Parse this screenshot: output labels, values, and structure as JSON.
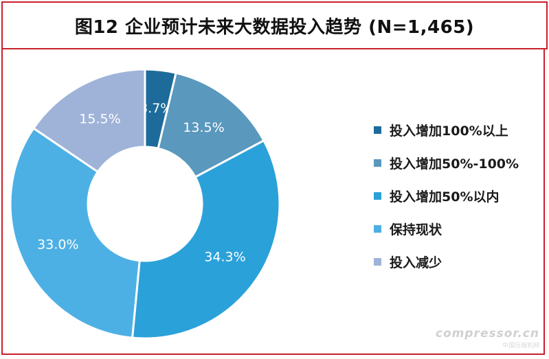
{
  "title": "图12 企业预计未来大数据投入趋势 (N=1,465)",
  "chart_data": {
    "type": "pie",
    "donut": true,
    "categories": [
      "投入增加100%以上",
      "投入增加50%-100%",
      "投入增加50%以内",
      "保持现状",
      "投入减少"
    ],
    "values": [
      3.7,
      13.5,
      34.3,
      33.0,
      15.5
    ],
    "labels": [
      "3.7%",
      "13.5%",
      "34.3%",
      "33.0%",
      "15.5%"
    ],
    "colors": [
      "#1d6b9a",
      "#5a98bd",
      "#2ba1da",
      "#4db0e4",
      "#9fb3d9"
    ],
    "legend_position": "right"
  },
  "watermark": {
    "main": "compressor.cn",
    "sub": "中国压缩机网"
  }
}
